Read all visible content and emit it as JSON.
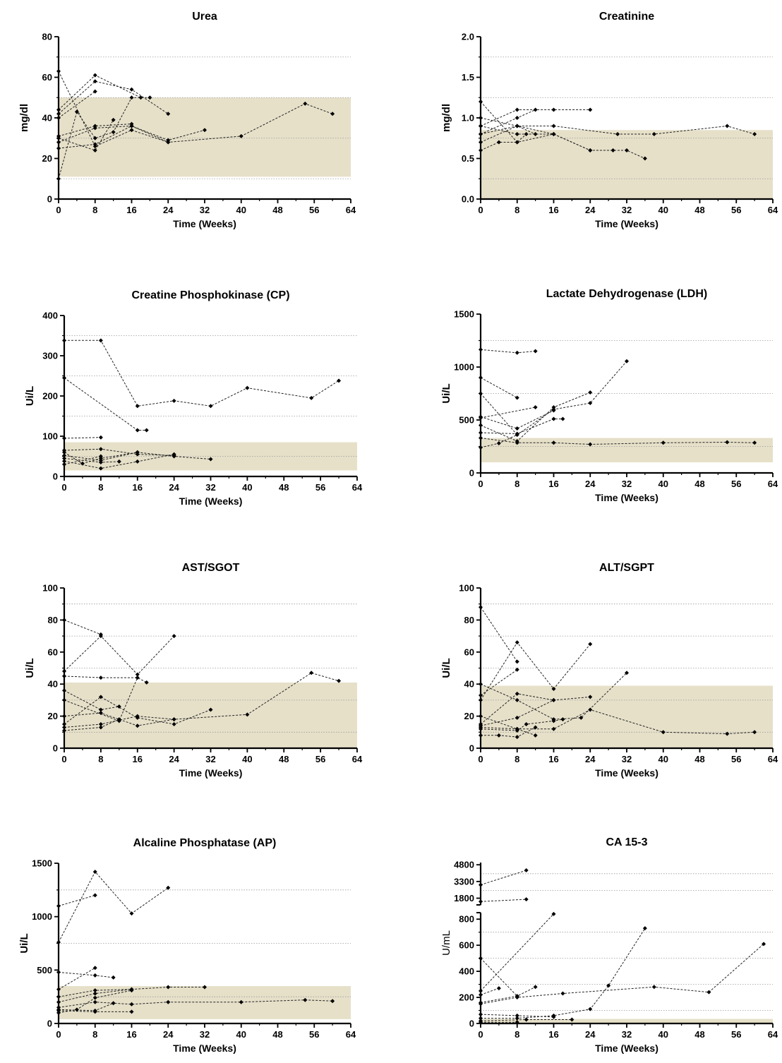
{
  "chart_data": [
    {
      "type": "line",
      "title": "Urea",
      "xlabel": "Time (Weeks)",
      "ylabel": "mg/dl",
      "xlim": [
        0,
        64
      ],
      "ylim": [
        0,
        80
      ],
      "xticks": [
        0,
        8,
        16,
        24,
        32,
        40,
        48,
        56,
        64
      ],
      "yticks": [
        0,
        20,
        40,
        60,
        80
      ],
      "gridlines_y": [
        10,
        30,
        50,
        70
      ],
      "reference_band": [
        11,
        50
      ],
      "series": [
        {
          "x": [
            0,
            8,
            16,
            24
          ],
          "y": [
            63,
            26,
            34,
            28
          ]
        },
        {
          "x": [
            0,
            8,
            18
          ],
          "y": [
            44,
            61,
            50
          ]
        },
        {
          "x": [
            0,
            8,
            16,
            24
          ],
          "y": [
            42,
            58,
            54,
            42
          ]
        },
        {
          "x": [
            0,
            8
          ],
          "y": [
            40,
            53
          ]
        },
        {
          "x": [
            0,
            4,
            8,
            12,
            16,
            20
          ],
          "y": [
            10,
            43,
            30,
            33,
            50,
            50
          ]
        },
        {
          "x": [
            0,
            8,
            16
          ],
          "y": [
            31,
            36,
            37
          ]
        },
        {
          "x": [
            0,
            8,
            12
          ],
          "y": [
            30,
            24,
            39
          ]
        },
        {
          "x": [
            0,
            8,
            16,
            24,
            32
          ],
          "y": [
            28,
            35,
            36,
            29,
            34
          ]
        },
        {
          "x": [
            0,
            8,
            16,
            24,
            40,
            54,
            60
          ],
          "y": [
            25,
            27,
            36,
            28,
            31,
            47,
            42
          ]
        }
      ]
    },
    {
      "type": "line",
      "title": "Creatinine",
      "xlabel": "Time (Weeks)",
      "ylabel": "mg/dl",
      "xlim": [
        0,
        64
      ],
      "ylim": [
        0,
        2
      ],
      "xticks": [
        0,
        8,
        16,
        24,
        32,
        40,
        48,
        56,
        64
      ],
      "yticks": [
        0.0,
        0.5,
        1.0,
        1.5,
        2.0
      ],
      "gridlines_y": [
        0.25,
        0.75,
        1.25,
        1.75
      ],
      "reference_band": [
        0,
        0.85
      ],
      "series": [
        {
          "x": [
            0,
            8,
            16
          ],
          "y": [
            1.2,
            0.7,
            0.8
          ]
        },
        {
          "x": [
            0,
            8,
            12
          ],
          "y": [
            1.0,
            0.9,
            0.8
          ]
        },
        {
          "x": [
            0,
            8,
            16,
            24
          ],
          "y": [
            0.9,
            1.1,
            1.1,
            1.1
          ]
        },
        {
          "x": [
            0,
            8,
            12
          ],
          "y": [
            0.8,
            1.0,
            1.1
          ]
        },
        {
          "x": [
            0,
            8,
            16,
            24,
            32,
            36
          ],
          "y": [
            0.7,
            0.9,
            0.8,
            0.6,
            0.6,
            0.5
          ]
        },
        {
          "x": [
            0,
            4,
            8,
            10
          ],
          "y": [
            0.6,
            0.7,
            0.7,
            0.8
          ]
        },
        {
          "x": [
            0,
            8,
            16,
            30,
            38,
            54,
            60
          ],
          "y": [
            0.8,
            0.9,
            0.9,
            0.8,
            0.8,
            0.9,
            0.8
          ]
        },
        {
          "x": [
            0,
            8,
            16,
            24,
            29
          ],
          "y": [
            0.9,
            0.8,
            0.8,
            0.6,
            0.6
          ]
        }
      ]
    },
    {
      "type": "line",
      "title": "Creatine Phosphokinase (CP)",
      "xlabel": "Time (Weeks)",
      "ylabel": "Ui/L",
      "xlim": [
        0,
        64
      ],
      "ylim": [
        0,
        400
      ],
      "xticks": [
        0,
        8,
        16,
        24,
        32,
        40,
        48,
        56,
        64
      ],
      "yticks": [
        0,
        100,
        200,
        300,
        400
      ],
      "gridlines_y": [
        50,
        150,
        250,
        350
      ],
      "reference_band": [
        15,
        85
      ],
      "series": [
        {
          "x": [
            0,
            8,
            16,
            24,
            32,
            40,
            54,
            60
          ],
          "y": [
            338,
            338,
            175,
            188,
            175,
            220,
            195,
            238
          ]
        },
        {
          "x": [
            0,
            16,
            18
          ],
          "y": [
            245,
            115,
            115
          ]
        },
        {
          "x": [
            0,
            8
          ],
          "y": [
            95,
            97
          ]
        },
        {
          "x": [
            0,
            8,
            16,
            24
          ],
          "y": [
            65,
            68,
            55,
            52
          ]
        },
        {
          "x": [
            0,
            4,
            8,
            16
          ],
          "y": [
            60,
            32,
            45,
            60
          ]
        },
        {
          "x": [
            0,
            8,
            16,
            24,
            32
          ],
          "y": [
            52,
            40,
            60,
            50,
            43
          ]
        },
        {
          "x": [
            0,
            8,
            12
          ],
          "y": [
            45,
            35,
            37
          ]
        },
        {
          "x": [
            0,
            8,
            16,
            24
          ],
          "y": [
            38,
            20,
            37,
            55
          ]
        },
        {
          "x": [
            0,
            8
          ],
          "y": [
            30,
            50
          ]
        }
      ]
    },
    {
      "type": "line",
      "title": "Lactate Dehydrogenase (LDH)",
      "xlabel": "Time (Weeks)",
      "ylabel": "Ui/L",
      "xlim": [
        0,
        64
      ],
      "ylim": [
        0,
        1500
      ],
      "xticks": [
        0,
        8,
        16,
        24,
        32,
        40,
        48,
        56,
        64
      ],
      "yticks": [
        0,
        500,
        1000,
        1500
      ],
      "gridlines_y": [
        250,
        750,
        1250
      ],
      "reference_band": [
        100,
        330
      ],
      "series": [
        {
          "x": [
            0,
            8,
            12
          ],
          "y": [
            1165,
            1135,
            1150
          ]
        },
        {
          "x": [
            0,
            8
          ],
          "y": [
            900,
            710
          ]
        },
        {
          "x": [
            0,
            8,
            16,
            24,
            32
          ],
          "y": [
            750,
            360,
            600,
            660,
            1055
          ]
        },
        {
          "x": [
            0,
            8,
            16
          ],
          "y": [
            530,
            420,
            590
          ]
        },
        {
          "x": [
            0,
            8,
            16,
            24
          ],
          "y": [
            450,
            300,
            620,
            760
          ]
        },
        {
          "x": [
            0,
            12
          ],
          "y": [
            520,
            620
          ]
        },
        {
          "x": [
            0,
            8,
            16,
            18
          ],
          "y": [
            380,
            370,
            510,
            510
          ]
        },
        {
          "x": [
            0,
            8,
            16,
            24,
            40,
            54,
            60
          ],
          "y": [
            330,
            285,
            285,
            270,
            285,
            290,
            285
          ]
        },
        {
          "x": [
            0,
            4,
            8
          ],
          "y": [
            240,
            280,
            360
          ]
        }
      ]
    },
    {
      "type": "line",
      "title": "AST/SGOT",
      "xlabel": "Time (Weeks)",
      "ylabel": "Ui/L",
      "xlim": [
        0,
        64
      ],
      "ylim": [
        0,
        100
      ],
      "xticks": [
        0,
        8,
        16,
        24,
        32,
        40,
        48,
        56,
        64
      ],
      "yticks": [
        0,
        20,
        40,
        60,
        80,
        100
      ],
      "gridlines_y": [
        10,
        30,
        50,
        70,
        90
      ],
      "reference_band": [
        0,
        41
      ],
      "series": [
        {
          "x": [
            0,
            8
          ],
          "y": [
            80,
            71
          ]
        },
        {
          "x": [
            0,
            8,
            16,
            24
          ],
          "y": [
            48,
            70,
            46,
            70
          ]
        },
        {
          "x": [
            0,
            8,
            16,
            18
          ],
          "y": [
            45,
            44,
            44,
            41
          ]
        },
        {
          "x": [
            0,
            8,
            12
          ],
          "y": [
            36,
            24,
            26
          ]
        },
        {
          "x": [
            0,
            12,
            16
          ],
          "y": [
            30,
            17,
            44
          ]
        },
        {
          "x": [
            0,
            8,
            16,
            24
          ],
          "y": [
            20,
            22,
            14,
            18
          ]
        },
        {
          "x": [
            0,
            8,
            16,
            24,
            32
          ],
          "y": [
            15,
            32,
            19,
            15,
            24
          ]
        },
        {
          "x": [
            0,
            8,
            16,
            24,
            40,
            54,
            60
          ],
          "y": [
            13,
            15,
            20,
            18,
            21,
            47,
            42
          ]
        },
        {
          "x": [
            0,
            8,
            12
          ],
          "y": [
            11,
            13,
            18
          ]
        }
      ]
    },
    {
      "type": "line",
      "title": "ALT/SGPT",
      "xlabel": "Time (Weeks)",
      "ylabel": "Ui/L",
      "xlim": [
        0,
        64
      ],
      "ylim": [
        0,
        100
      ],
      "xticks": [
        0,
        8,
        16,
        24,
        32,
        40,
        48,
        56,
        64
      ],
      "yticks": [
        0,
        20,
        40,
        60,
        80,
        100
      ],
      "gridlines_y": [
        10,
        30,
        50,
        70,
        90
      ],
      "reference_band": [
        0,
        39
      ],
      "series": [
        {
          "x": [
            0,
            8
          ],
          "y": [
            88,
            54
          ]
        },
        {
          "x": [
            0,
            8,
            16,
            24
          ],
          "y": [
            30,
            66,
            37,
            65
          ]
        },
        {
          "x": [
            0,
            8,
            16,
            22,
            32
          ],
          "y": [
            40,
            30,
            18,
            19,
            47
          ]
        },
        {
          "x": [
            0,
            8
          ],
          "y": [
            33,
            49
          ]
        },
        {
          "x": [
            0,
            8,
            12
          ],
          "y": [
            20,
            12,
            8
          ]
        },
        {
          "x": [
            0,
            8,
            16
          ],
          "y": [
            15,
            34,
            30
          ]
        },
        {
          "x": [
            0,
            8,
            16,
            24
          ],
          "y": [
            14,
            19,
            30,
            32
          ]
        },
        {
          "x": [
            0,
            8,
            16,
            24,
            40,
            54,
            60
          ],
          "y": [
            13,
            12,
            12,
            24,
            10,
            9,
            10
          ]
        },
        {
          "x": [
            0,
            4,
            8,
            12
          ],
          "y": [
            8,
            8,
            7,
            13
          ]
        },
        {
          "x": [
            0,
            8,
            10,
            16,
            18
          ],
          "y": [
            12,
            11,
            15,
            17,
            18
          ]
        }
      ]
    },
    {
      "type": "line",
      "title": "Alcaline Phosphatase (AP)",
      "xlabel": "Time (Weeks)",
      "ylabel": "Ui/L",
      "xlim": [
        0,
        64
      ],
      "ylim": [
        0,
        1500
      ],
      "xticks": [
        0,
        8,
        16,
        24,
        32,
        40,
        48,
        56,
        64
      ],
      "yticks": [
        0,
        500,
        1000,
        1500
      ],
      "gridlines_y": [
        250,
        750,
        1250
      ],
      "reference_band": [
        40,
        350
      ],
      "series": [
        {
          "x": [
            0,
            8
          ],
          "y": [
            1100,
            1200
          ]
        },
        {
          "x": [
            0,
            8,
            16,
            24
          ],
          "y": [
            760,
            1420,
            1030,
            1270
          ]
        },
        {
          "x": [
            0,
            8,
            12
          ],
          "y": [
            480,
            450,
            430
          ]
        },
        {
          "x": [
            0,
            8
          ],
          "y": [
            320,
            520
          ]
        },
        {
          "x": [
            0,
            8,
            16
          ],
          "y": [
            250,
            310,
            320
          ]
        },
        {
          "x": [
            0,
            8,
            16,
            24,
            32
          ],
          "y": [
            200,
            280,
            320,
            340,
            340
          ]
        },
        {
          "x": [
            0,
            8,
            16,
            24,
            40,
            54,
            60
          ],
          "y": [
            150,
            200,
            180,
            200,
            200,
            220,
            210
          ]
        },
        {
          "x": [
            0,
            8,
            12
          ],
          "y": [
            130,
            120,
            190
          ]
        },
        {
          "x": [
            0,
            8,
            16
          ],
          "y": [
            120,
            110,
            110
          ]
        },
        {
          "x": [
            0,
            4,
            8,
            16
          ],
          "y": [
            100,
            130,
            240,
            310
          ]
        }
      ]
    },
    {
      "type": "line",
      "title": "CA 15-3",
      "xlabel": "Time (Weeks)",
      "ylabel": "U/mL",
      "xlim": [
        0,
        64
      ],
      "ylim_lower": [
        0,
        850
      ],
      "ylim_upper": [
        1200,
        5000
      ],
      "axis_break": true,
      "xticks": [
        0,
        8,
        16,
        24,
        32,
        40,
        48,
        56,
        64
      ],
      "yticks_lower": [
        0,
        200,
        400,
        600,
        800
      ],
      "yticks_upper": [
        1800,
        3300,
        4800
      ],
      "gridlines_y": [
        100,
        300,
        500,
        700,
        2500,
        4000
      ],
      "reference_band": [
        0,
        35
      ],
      "series": [
        {
          "x": [
            0,
            10
          ],
          "y": [
            3000,
            4300
          ]
        },
        {
          "x": [
            0,
            10
          ],
          "y": [
            1500,
            1700
          ]
        },
        {
          "x": [
            0,
            8
          ],
          "y": [
            500,
            210
          ]
        },
        {
          "x": [
            0,
            16
          ],
          "y": [
            250,
            840
          ]
        },
        {
          "x": [
            0,
            4
          ],
          "y": [
            220,
            270
          ]
        },
        {
          "x": [
            0,
            8,
            12
          ],
          "y": [
            160,
            210,
            280
          ]
        },
        {
          "x": [
            0,
            8,
            18,
            38,
            50,
            62
          ],
          "y": [
            150,
            200,
            230,
            280,
            240,
            610
          ]
        },
        {
          "x": [
            0,
            8,
            16
          ],
          "y": [
            70,
            60,
            50
          ]
        },
        {
          "x": [
            0,
            8,
            16,
            24,
            28,
            36
          ],
          "y": [
            40,
            40,
            60,
            110,
            290,
            730
          ]
        },
        {
          "x": [
            0,
            10,
            20
          ],
          "y": [
            20,
            30,
            30
          ]
        },
        {
          "x": [
            0,
            8
          ],
          "y": [
            10,
            10
          ]
        }
      ]
    }
  ]
}
